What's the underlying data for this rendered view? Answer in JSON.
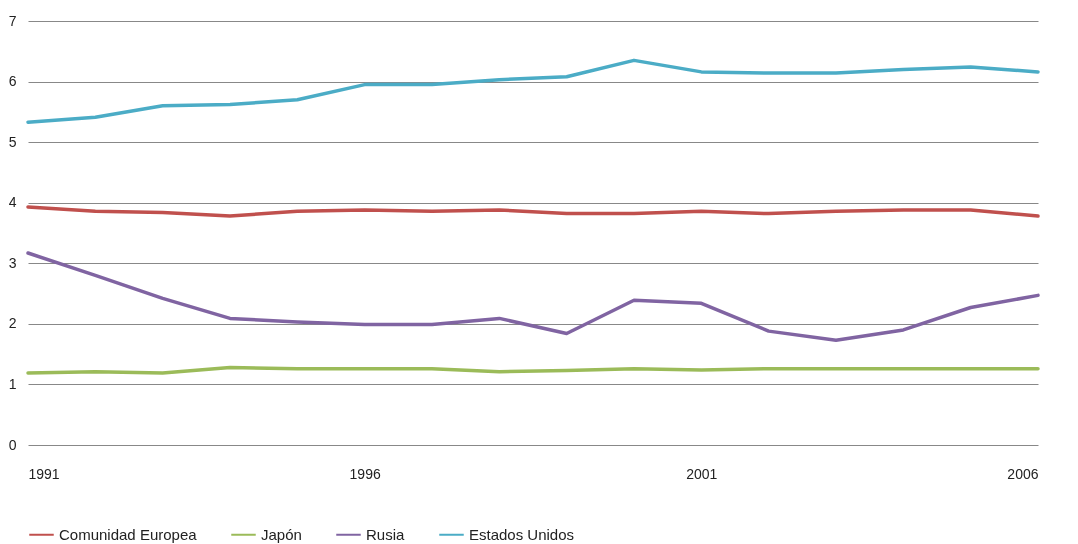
{
  "chart_data": {
    "type": "line",
    "x": [
      1991,
      1992,
      1993,
      1994,
      1995,
      1996,
      1997,
      1998,
      1999,
      2000,
      2001,
      2002,
      2003,
      2004,
      2005,
      2006
    ],
    "xlim": [
      1991,
      2006
    ],
    "xticks": [
      1991,
      1996,
      2001,
      2006
    ],
    "ylim": [
      0,
      7
    ],
    "yticks": [
      0,
      1,
      2,
      3,
      4,
      5,
      6,
      7
    ],
    "grid": "y",
    "legend": "bottom",
    "line_style": "solid",
    "series": [
      {
        "name": "Comunidad Europea",
        "color": "#c0504d",
        "values": [
          3.93,
          3.86,
          3.84,
          3.78,
          3.86,
          3.88,
          3.86,
          3.88,
          3.82,
          3.82,
          3.86,
          3.82,
          3.86,
          3.88,
          3.88,
          3.78
        ]
      },
      {
        "name": "Japón",
        "color": "#9bbb59",
        "values": [
          1.19,
          1.21,
          1.19,
          1.28,
          1.26,
          1.26,
          1.26,
          1.21,
          1.23,
          1.26,
          1.24,
          1.26,
          1.26,
          1.26,
          1.26,
          1.26
        ]
      },
      {
        "name": "Rusia",
        "color": "#8064a2",
        "values": [
          3.17,
          2.8,
          2.42,
          2.09,
          2.03,
          1.99,
          1.99,
          2.09,
          1.84,
          2.39,
          2.34,
          1.88,
          1.73,
          1.9,
          2.27,
          2.47
        ]
      },
      {
        "name": "Estados Unidos",
        "color": "#4bacc6",
        "values": [
          5.33,
          5.41,
          5.6,
          5.62,
          5.7,
          5.95,
          5.95,
          6.03,
          6.08,
          6.35,
          6.16,
          6.14,
          6.14,
          6.2,
          6.24,
          6.16
        ]
      }
    ]
  }
}
